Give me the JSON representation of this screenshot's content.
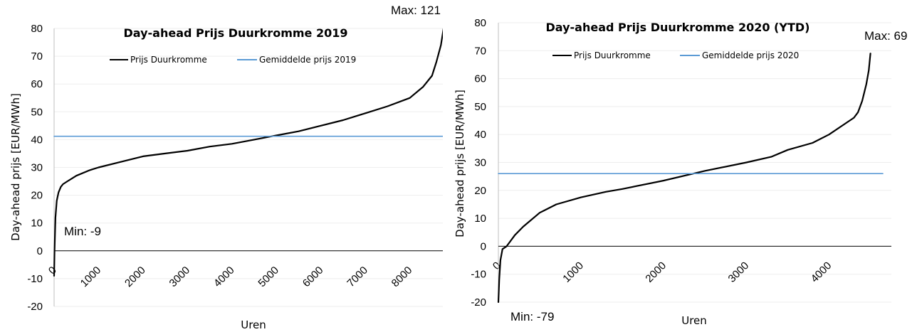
{
  "chart_data": [
    {
      "type": "line",
      "title": "Day-ahead Prijs Duurkromme 2019",
      "xlabel": "Uren",
      "ylabel": "Day-ahead prijs [EUR/MWh]",
      "ylim": [
        -20,
        80
      ],
      "xlim": [
        0,
        8760
      ],
      "yticks": [
        "80",
        "70",
        "60",
        "50",
        "40",
        "30",
        "20",
        "10",
        "0",
        "-10",
        "-20"
      ],
      "xticks": [
        "0",
        "1000",
        "2000",
        "3000",
        "4000",
        "5000",
        "6000",
        "7000",
        "8000"
      ],
      "legend_position": "top",
      "grid": true,
      "annotations": {
        "max": "Max: 121",
        "min": "Min: -9"
      },
      "series": [
        {
          "name": "Prijs Duurkromme",
          "color": "#000000",
          "x": [
            0,
            10,
            30,
            60,
            100,
            150,
            200,
            300,
            500,
            800,
            1000,
            1500,
            2000,
            2500,
            3000,
            3500,
            4000,
            4500,
            5000,
            5500,
            6000,
            6500,
            7000,
            7500,
            8000,
            8300,
            8500,
            8600,
            8700,
            8760
          ],
          "y": [
            -9,
            0,
            12,
            18,
            21,
            23,
            24,
            25,
            27,
            29,
            30,
            32,
            34,
            35,
            36,
            37.5,
            38.5,
            40,
            41.5,
            43,
            45,
            47,
            49.5,
            52,
            55,
            59,
            63,
            68,
            74,
            80
          ]
        },
        {
          "name": "Gemiddelde prijs 2019",
          "color": "#5b9bd5",
          "x": [
            0,
            8760
          ],
          "y": [
            41.2,
            41.2
          ]
        }
      ]
    },
    {
      "type": "line",
      "title": "Day-ahead Prijs Duurkromme 2020 (YTD)",
      "xlabel": "Uren",
      "ylabel": "Day-ahead prijs [EUR/MWh]",
      "ylim": [
        -20,
        80
      ],
      "xlim": [
        0,
        4650
      ],
      "yticks": [
        "80",
        "70",
        "60",
        "50",
        "40",
        "30",
        "20",
        "10",
        "0",
        "-10",
        "-20"
      ],
      "xticks": [
        "0",
        "1000",
        "2000",
        "3000",
        "4000"
      ],
      "legend_position": "top",
      "grid": true,
      "annotations": {
        "max": "Max: 69",
        "min": "Min: -79"
      },
      "series": [
        {
          "name": "Prijs Duurkromme",
          "color": "#000000",
          "x": [
            0,
            10,
            25,
            50,
            100,
            200,
            300,
            500,
            700,
            1000,
            1300,
            1500,
            2000,
            2500,
            3000,
            3300,
            3500,
            3800,
            4000,
            4200,
            4300,
            4350,
            4400,
            4450,
            4480,
            4500
          ],
          "y": [
            -20,
            -12,
            -5,
            -1,
            0,
            4,
            7,
            12,
            15,
            17.5,
            19.5,
            20.5,
            23.5,
            27,
            30,
            32,
            34.5,
            37,
            40,
            44,
            46,
            48,
            52,
            58,
            63,
            69
          ]
        },
        {
          "name": "Gemiddelde prijs 2020",
          "color": "#5b9bd5",
          "x": [
            0,
            4650
          ],
          "y": [
            26,
            26
          ]
        }
      ]
    }
  ]
}
